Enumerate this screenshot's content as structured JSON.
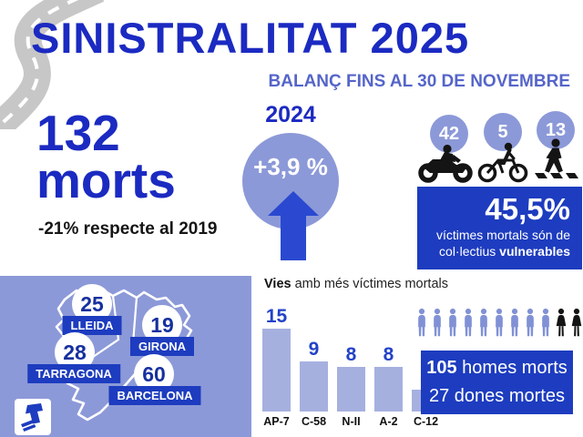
{
  "header": {
    "title": "SINISTRALITAT 2025",
    "subtitle": "BALANÇ FINS AL 30 DE NOVEMBRE"
  },
  "totals": {
    "value": "132",
    "unit": "morts",
    "comparison": "-21% respecte al 2019"
  },
  "yearly_change": {
    "year": "2024",
    "delta": "+3,9 %"
  },
  "vulnerable": {
    "groups": [
      {
        "icon": "motorcycle-icon",
        "value": "42"
      },
      {
        "icon": "bicycle-icon",
        "value": "5"
      },
      {
        "icon": "pedestrian-icon",
        "value": "13"
      }
    ],
    "percentage": "45,5%",
    "caption_line1": "víctimes mortals són de",
    "caption_line2_regular": "col·lectius ",
    "caption_line2_bold": "vulnerables"
  },
  "map": {
    "provinces": [
      {
        "name": "LLEIDA",
        "deaths": "25"
      },
      {
        "name": "GIRONA",
        "deaths": "19"
      },
      {
        "name": "TARRAGONA",
        "deaths": "28"
      },
      {
        "name": "BARCELONA",
        "deaths": "60"
      }
    ]
  },
  "chart_data": {
    "type": "bar",
    "title_bold": "Vies",
    "title_rest": " amb més víctimes mortals",
    "categories": [
      "AP-7",
      "C-58",
      "N-II",
      "A-2",
      "C-12"
    ],
    "values": [
      15,
      9,
      8,
      8,
      4
    ],
    "ylim": [
      0,
      16
    ],
    "grid": false,
    "legend": "none",
    "bar_color": "#a6b0df",
    "value_label_color": "#2342c8"
  },
  "gender": {
    "men_bold": "105",
    "men_rest": " homes morts",
    "women_line": "27 dones mortes",
    "male_icon_count": 9,
    "female_icon_count": 2
  },
  "colors": {
    "title_blue": "#1b2ac1",
    "subtitle_blue": "#5565c9",
    "royal_blue": "#1d3cbf",
    "periwinkle": "#8c99d8",
    "bar_periwinkle": "#a6b0df",
    "arrow_blue": "#2a49d0"
  }
}
